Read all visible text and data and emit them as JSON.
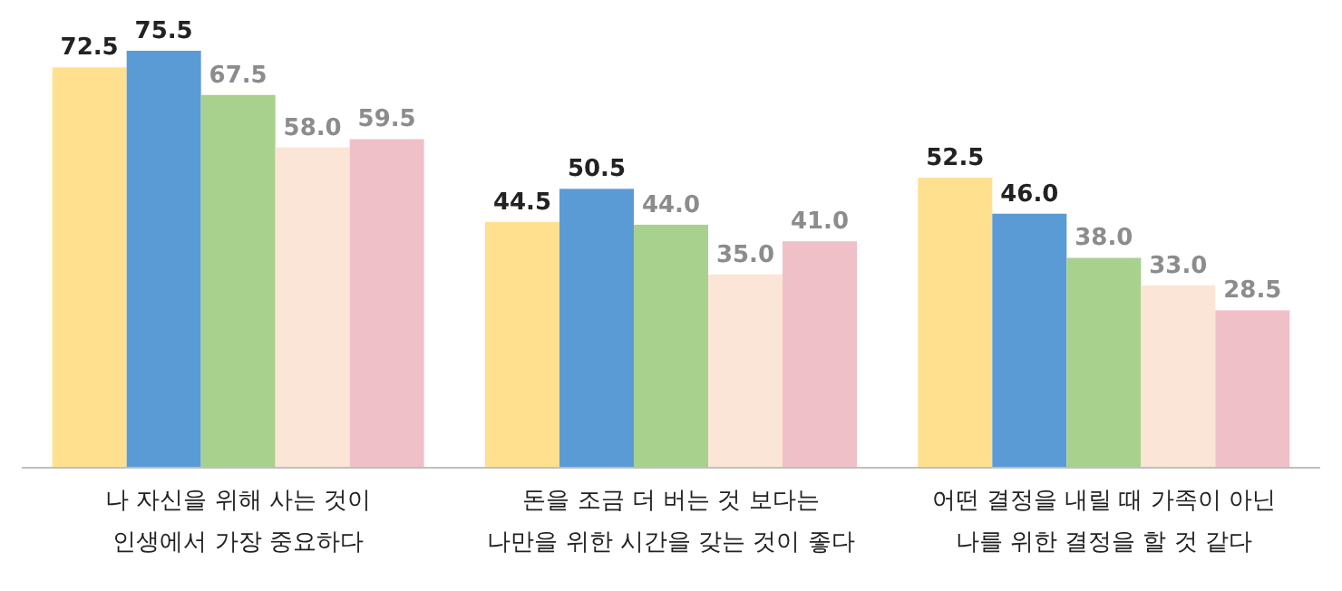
{
  "chart_data": {
    "type": "bar",
    "categories": [
      "나 자신을 위해 사는 것이\n인생에서 가장 중요하다",
      "돈을 조금 더 버는 것 보다는\n나만을 위한 시간을 갖는 것이 좋다",
      "어떤 결정을 내릴 때 가족이 아닌\n나를 위한 결정을 할 것 같다"
    ],
    "series": [
      {
        "color": "#ffe08f",
        "values": [
          72.5,
          44.5,
          52.5
        ],
        "value_labels": [
          "72.5",
          "44.5",
          "52.5"
        ]
      },
      {
        "color": "#5b9bd5",
        "values": [
          75.5,
          50.5,
          46.0
        ],
        "value_labels": [
          "75.5",
          "50.5",
          "46.0"
        ]
      },
      {
        "color": "#a9d18e",
        "values": [
          67.5,
          44.0,
          38.0
        ],
        "value_labels": [
          "67.5",
          "44.0",
          "38.0"
        ]
      },
      {
        "color": "#fbe5d6",
        "values": [
          58.0,
          35.0,
          33.0
        ],
        "value_labels": [
          "58.0",
          "35.0",
          "33.0"
        ]
      },
      {
        "color": "#f0c0c8",
        "values": [
          59.5,
          41.0,
          28.5
        ],
        "value_labels": [
          "59.5",
          "41.0",
          "28.5"
        ]
      }
    ]
  }
}
